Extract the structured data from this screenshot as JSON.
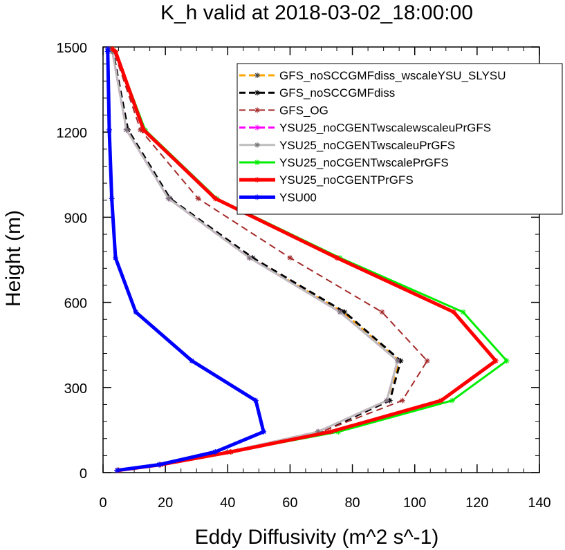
{
  "chart_data": {
    "type": "line",
    "title": "K_h valid at 2018-03-02_18:00:00",
    "xlabel": "Eddy Diffusivity (m^2 s^-1)",
    "ylabel": "Height (m)",
    "xlim": [
      0,
      140
    ],
    "ylim": [
      0,
      1500
    ],
    "xticks": [
      "0",
      "20",
      "40",
      "60",
      "80",
      "100",
      "120",
      "140"
    ],
    "yticks": [
      "0",
      "300",
      "600",
      "900",
      "1200",
      "1500"
    ],
    "legend_position": "top-right",
    "series": [
      {
        "name": "GFS_noSCCGMFdiss_wscaleYSU_SLYSU",
        "color": "#ffa500",
        "dash": "dash",
        "width": 3,
        "x": [
          4.5,
          18,
          40,
          69,
          91,
          95,
          77,
          47,
          21,
          7.5,
          3,
          2
        ],
        "y": [
          8,
          28,
          73,
          144,
          254,
          394,
          566,
          757,
          966,
          1208,
          1484,
          1493
        ]
      },
      {
        "name": "GFS_noSCCGMFdiss",
        "color": "#000000",
        "dash": "dash",
        "width": 3,
        "x": [
          5,
          18.5,
          41,
          70,
          92,
          95.5,
          77.5,
          48,
          21.5,
          8,
          3.2,
          2.2
        ],
        "y": [
          8,
          28,
          73,
          144,
          254,
          394,
          566,
          757,
          966,
          1208,
          1484,
          1493
        ]
      },
      {
        "name": "GFS_OG",
        "color": "#a52a2a",
        "dash": "dash",
        "width": 2,
        "x": [
          5,
          18.5,
          41,
          70,
          96,
          104,
          89.5,
          60,
          30.5,
          12,
          3.5,
          2.5
        ],
        "y": [
          8,
          28,
          73,
          144,
          254,
          394,
          566,
          757,
          966,
          1208,
          1484,
          1493
        ]
      },
      {
        "name": "YSU25_noCGENTwscalewscaleuPrGFS",
        "color": "#ff00ff",
        "dash": "dash",
        "width": 3,
        "x": [
          4.5,
          18,
          40,
          69,
          91,
          94.5,
          76,
          47,
          21,
          7.5,
          3,
          2
        ],
        "y": [
          8,
          28,
          73,
          144,
          254,
          394,
          566,
          757,
          966,
          1208,
          1484,
          1493
        ]
      },
      {
        "name": "YSU25_noCGENTwscaleuPrGFS",
        "color": "#bdbdbd",
        "dash": "solid",
        "width": 3,
        "x": [
          4.5,
          18,
          40,
          69,
          91,
          94.5,
          76,
          47,
          21,
          7.5,
          3,
          2
        ],
        "y": [
          8,
          28,
          73,
          144,
          254,
          394,
          566,
          757,
          966,
          1208,
          1484,
          1493
        ]
      },
      {
        "name": "YSU25_noCGENTwscalePrGFS",
        "color": "#00ee00",
        "dash": "solid",
        "width": 3,
        "x": [
          5,
          18.5,
          41,
          75.5,
          112,
          129.5,
          115.5,
          76,
          36.5,
          13.5,
          4,
          3
        ],
        "y": [
          8,
          28,
          73,
          144,
          254,
          394,
          566,
          757,
          966,
          1208,
          1484,
          1493
        ]
      },
      {
        "name": "YSU25_noCGENTPrGFS",
        "color": "#ff0000",
        "dash": "solid",
        "width": 5,
        "x": [
          5,
          18.5,
          41,
          73,
          108.5,
          126,
          112.5,
          75,
          36,
          13,
          4,
          3
        ],
        "y": [
          8,
          28,
          73,
          144,
          254,
          394,
          566,
          757,
          966,
          1208,
          1484,
          1493
        ]
      },
      {
        "name": "YSU00",
        "color": "#0000ff",
        "dash": "solid",
        "width": 5,
        "x": [
          4.5,
          18,
          36,
          51.5,
          49,
          28.5,
          10.5,
          4,
          2.8,
          2,
          1.5,
          1.5
        ],
        "y": [
          8,
          28,
          73,
          144,
          254,
          394,
          566,
          757,
          966,
          1208,
          1484,
          1493
        ]
      }
    ]
  }
}
